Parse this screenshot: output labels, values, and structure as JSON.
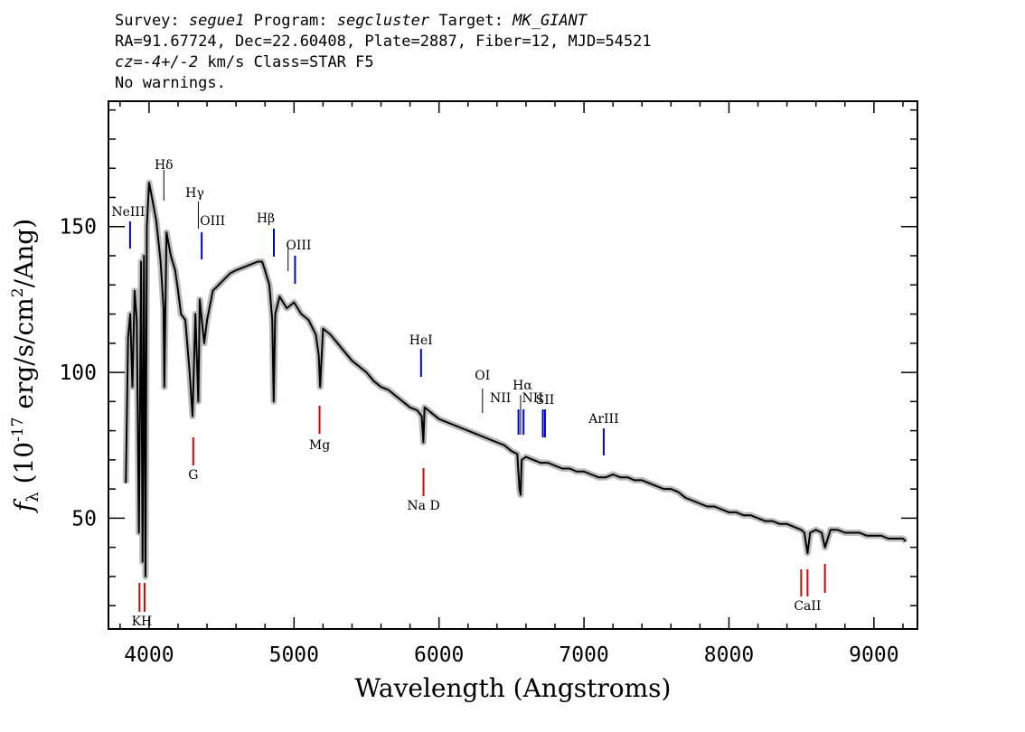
{
  "header": {
    "survey_label": "Survey:",
    "survey": "segue1",
    "program_label": "Program:",
    "program": "segcluster",
    "target_label": "Target:",
    "target": "MK_GIANT",
    "line2": "RA=91.67724, Dec=22.60408, Plate=2887, Fiber=12, MJD=54521",
    "cz_label": "cz=",
    "cz_value": "-4+/-2",
    "cz_unit_class": "km/s Class=STAR F5",
    "warnings": "No warnings."
  },
  "chart_data": {
    "type": "line",
    "xlabel": "Wavelength (Angstroms)",
    "ylabel": "f_λ (10^-17 erg/s/cm^2/Ang)",
    "xlim": [
      3720,
      9300
    ],
    "ylim": [
      12,
      193
    ],
    "xticks": [
      4000,
      5000,
      6000,
      7000,
      8000,
      9000
    ],
    "yticks": [
      50,
      100,
      150
    ],
    "colors": {
      "spectrum": "#000000",
      "error": "#bbbbbb",
      "emission": "#0000dd",
      "absorption": "#dd0000",
      "weak": "#000000"
    },
    "spectrum": {
      "x": [
        3840,
        3855,
        3870,
        3885,
        3900,
        3915,
        3930,
        3945,
        3955,
        3965,
        3975,
        3985,
        4000,
        4020,
        4050,
        4080,
        4100,
        4105,
        4120,
        4150,
        4180,
        4200,
        4220,
        4250,
        4280,
        4300,
        4320,
        4340,
        4350,
        4380,
        4400,
        4440,
        4480,
        4520,
        4560,
        4600,
        4650,
        4700,
        4750,
        4780,
        4800,
        4830,
        4850,
        4860,
        4870,
        4900,
        4950,
        5000,
        5050,
        5100,
        5150,
        5170,
        5180,
        5200,
        5250,
        5300,
        5350,
        5400,
        5450,
        5500,
        5550,
        5600,
        5650,
        5700,
        5750,
        5800,
        5850,
        5880,
        5892,
        5900,
        5950,
        6000,
        6050,
        6100,
        6150,
        6200,
        6250,
        6300,
        6350,
        6400,
        6450,
        6500,
        6540,
        6555,
        6563,
        6570,
        6600,
        6650,
        6700,
        6750,
        6800,
        6850,
        6900,
        6950,
        7000,
        7050,
        7100,
        7150,
        7200,
        7250,
        7300,
        7350,
        7400,
        7450,
        7500,
        7550,
        7600,
        7650,
        7700,
        7750,
        7800,
        7850,
        7900,
        7950,
        8000,
        8050,
        8100,
        8150,
        8200,
        8250,
        8300,
        8350,
        8400,
        8450,
        8498,
        8520,
        8542,
        8560,
        8600,
        8640,
        8662,
        8700,
        8750,
        8800,
        8850,
        8900,
        8950,
        9000,
        9050,
        9100,
        9150,
        9200,
        9220
      ],
      "y": [
        62,
        112,
        120,
        95,
        128,
        118,
        45,
        138,
        35,
        140,
        30,
        150,
        165,
        160,
        152,
        138,
        122,
        95,
        148,
        140,
        135,
        128,
        120,
        118,
        100,
        85,
        120,
        90,
        125,
        110,
        118,
        128,
        130,
        132,
        134,
        135,
        136,
        137,
        138,
        138,
        135,
        130,
        118,
        90,
        120,
        126,
        122,
        124,
        120,
        118,
        113,
        106,
        95,
        115,
        113,
        110,
        107,
        104,
        102,
        100,
        97,
        95,
        94,
        92,
        90,
        88,
        87,
        85,
        76,
        88,
        86,
        84,
        83,
        82,
        81,
        80,
        79,
        78,
        77,
        76,
        75,
        73,
        72,
        60,
        58,
        70,
        71,
        70,
        69,
        69,
        68,
        67,
        67,
        66,
        66,
        65,
        64,
        64,
        65,
        64,
        64,
        63,
        63,
        62,
        61,
        60,
        60,
        59,
        57,
        56,
        55,
        54,
        54,
        53,
        52,
        52,
        51,
        51,
        50,
        49,
        49,
        48,
        48,
        47,
        46,
        45,
        38,
        45,
        46,
        45,
        40,
        46,
        46,
        45,
        45,
        45,
        44,
        44,
        44,
        43,
        43,
        43,
        42
      ]
    },
    "lines": [
      {
        "label": "NeIII",
        "wavelength": 3869,
        "kind": "emission"
      },
      {
        "label": "Hδ",
        "wavelength": 4102,
        "kind": "weak"
      },
      {
        "label": "Hγ",
        "wavelength": 4340,
        "kind": "weak"
      },
      {
        "label": "OIII",
        "wavelength": 4363,
        "kind": "emission"
      },
      {
        "label": "Hβ",
        "wavelength": 4861,
        "kind": "emission"
      },
      {
        "label": "OIII",
        "wavelength": 4959,
        "kind": "weak"
      },
      {
        "label": "OIII",
        "wavelength": 5007,
        "kind": "emission"
      },
      {
        "label": "HeI",
        "wavelength": 5876,
        "kind": "emission"
      },
      {
        "label": "OI",
        "wavelength": 6300,
        "kind": "weak"
      },
      {
        "label": "NII",
        "wavelength": 6548,
        "kind": "emission"
      },
      {
        "label": "Hα",
        "wavelength": 6563,
        "kind": "weak"
      },
      {
        "label": "NII",
        "wavelength": 6583,
        "kind": "emission"
      },
      {
        "label": "SII",
        "wavelength": 6716,
        "kind": "emission"
      },
      {
        "label": "SII",
        "wavelength": 6731,
        "kind": "emission"
      },
      {
        "label": "ArIII",
        "wavelength": 7136,
        "kind": "emission"
      },
      {
        "label": "K",
        "wavelength": 3934,
        "kind": "absorption"
      },
      {
        "label": "H",
        "wavelength": 3969,
        "kind": "absorption"
      },
      {
        "label": "G",
        "wavelength": 4305,
        "kind": "absorption"
      },
      {
        "label": "Mg",
        "wavelength": 5176,
        "kind": "absorption"
      },
      {
        "label": "Na D",
        "wavelength": 5893,
        "kind": "absorption"
      },
      {
        "label": "CaII",
        "wavelength": 8498,
        "kind": "absorption"
      },
      {
        "label": "CaII",
        "wavelength": 8542,
        "kind": "absorption"
      },
      {
        "label": "CaII",
        "wavelength": 8662,
        "kind": "absorption"
      }
    ]
  }
}
